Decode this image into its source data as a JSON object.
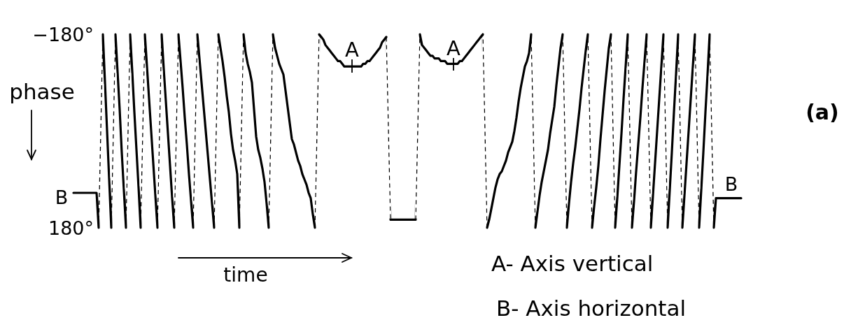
{
  "chart_data": {
    "type": "line",
    "categories": [
      null,
      null,
      null,
      null,
      null,
      null,
      null,
      null,
      null,
      null,
      null,
      null,
      null,
      null,
      null,
      null,
      null,
      null,
      null,
      null,
      null,
      null,
      null,
      null,
      null,
      null,
      null,
      null,
      null,
      null,
      null,
      null,
      null,
      null,
      null,
      null,
      null,
      null,
      null,
      null,
      null,
      null,
      null,
      null,
      null,
      null,
      null,
      null,
      null,
      null,
      null,
      null,
      null,
      null,
      null,
      null,
      null,
      null,
      null,
      null,
      null,
      null,
      null,
      null,
      null,
      null,
      null,
      null,
      null,
      null,
      null,
      null,
      null,
      null,
      null,
      null,
      null,
      null,
      null,
      null,
      null,
      null,
      null,
      null,
      null,
      null,
      null,
      null,
      null,
      null,
      null,
      null,
      null,
      null,
      null,
      null,
      null,
      null,
      null,
      null,
      null,
      null,
      null,
      null,
      null,
      null,
      null,
      null,
      null,
      null,
      null,
      null,
      null,
      null,
      null,
      null,
      null,
      null,
      null,
      null,
      null,
      null,
      null,
      null,
      null,
      null,
      null,
      null,
      null,
      null,
      null,
      null,
      null,
      null,
      null,
      null,
      null,
      null,
      null,
      null,
      null,
      null,
      null,
      null,
      null,
      null,
      null,
      null,
      null,
      null,
      null,
      null,
      null,
      null,
      null,
      null,
      null,
      null,
      null,
      null,
      null,
      null,
      null,
      null,
      null,
      null,
      null,
      null,
      null,
      null,
      null,
      null,
      null,
      null,
      null,
      null,
      null,
      null,
      null,
      null,
      null,
      null,
      null,
      null,
      null,
      null,
      null,
      null,
      null,
      null,
      null,
      null,
      null,
      null,
      null,
      null,
      null,
      null,
      null,
      null,
      null,
      null,
      null,
      null,
      null,
      null,
      null,
      null,
      null,
      null,
      null,
      null,
      null,
      null,
      null,
      null,
      null,
      null,
      null,
      null,
      null,
      null,
      null,
      null,
      null,
      null,
      null,
      null,
      null,
      null,
      null,
      null,
      null,
      null,
      null,
      null,
      null,
      null,
      null,
      null,
      null,
      null,
      null,
      null,
      null,
      null,
      null,
      null,
      null,
      null,
      null,
      null,
      null,
      null,
      null,
      null,
      null,
      null,
      null,
      null,
      null,
      null,
      null,
      null,
      null,
      null,
      null,
      null,
      null,
      null,
      null,
      null,
      null,
      null,
      null,
      null,
      null,
      null,
      null,
      null,
      null,
      null,
      null,
      null,
      null,
      null,
      null,
      null,
      null,
      null,
      null,
      null,
      null,
      null,
      null,
      null,
      null,
      null,
      null,
      null,
      null,
      null,
      null,
      null,
      null,
      null,
      null,
      null,
      null,
      null,
      null,
      null,
      null,
      null,
      null,
      null,
      null,
      null,
      null
    ],
    "series": [
      {
        "color": "#000000",
        "line_style": "solid",
        "values": [
          115,
          115,
          115,
          115,
          115,
          115,
          115,
          115,
          115,
          115,
          115,
          115,
          180,
          null,
          -180,
          -90,
          0,
          90,
          180,
          null,
          -180,
          -110,
          -40,
          40,
          110,
          180,
          null,
          -180,
          -110,
          -35,
          35,
          105,
          180,
          null,
          -180,
          -120,
          -60,
          0,
          60,
          120,
          180,
          null,
          -180,
          -115,
          -55,
          5,
          65,
          125,
          180,
          null,
          -180,
          -130,
          -80,
          -25,
          25,
          80,
          130,
          180,
          null,
          -180,
          -135,
          -90,
          -45,
          0,
          45,
          90,
          135,
          180,
          null,
          -180,
          -155,
          -130,
          -100,
          -65,
          -35,
          5,
          35,
          55,
          80,
          180,
          null,
          -180,
          -145,
          -125,
          -110,
          -90,
          -40,
          10,
          35,
          50,
          70,
          95,
          135,
          180,
          null,
          -180,
          -155,
          -140,
          -125,
          -115,
          -105,
          -75,
          -45,
          -15,
          15,
          25,
          40,
          55,
          65,
          80,
          90,
          100,
          115,
          125,
          155,
          180,
          null,
          -180,
          -175,
          -170,
          -160,
          -155,
          -150,
          -145,
          -140,
          -135,
          -130,
          -130,
          -125,
          -120,
          -120,
          -120,
          -120,
          -120,
          -120,
          -120,
          -120,
          -120,
          -125,
          -125,
          -130,
          -130,
          -135,
          -140,
          -145,
          -150,
          -155,
          -165,
          -170,
          -175,
          null,
          165,
          165,
          165,
          165,
          165,
          165,
          165,
          165,
          165,
          165,
          165,
          165,
          165,
          null,
          -180,
          -160,
          -155,
          -150,
          -145,
          -140,
          -140,
          -135,
          -135,
          -135,
          -130,
          -130,
          -130,
          -125,
          -125,
          -125,
          -125,
          -125,
          -125,
          -130,
          -130,
          -135,
          -140,
          -145,
          -150,
          -155,
          -160,
          -165,
          -170,
          -175,
          -180,
          null,
          180,
          165,
          145,
          125,
          105,
          90,
          80,
          75,
          65,
          55,
          40,
          30,
          20,
          0,
          -25,
          -55,
          -80,
          -100,
          -120,
          -130,
          -145,
          -180,
          null,
          180,
          150,
          120,
          95,
          75,
          55,
          35,
          5,
          -20,
          -45,
          -85,
          -120,
          -155,
          -180,
          null,
          180,
          135,
          95,
          60,
          30,
          -5,
          -40,
          -80,
          -115,
          -150,
          -180,
          null,
          180,
          140,
          105,
          65,
          15,
          -30,
          -75,
          -115,
          -155,
          -180,
          null,
          180,
          125,
          65,
          5,
          -60,
          -120,
          -180,
          null,
          180,
          130,
          75,
          25,
          -25,
          -80,
          -130,
          -180,
          null,
          180,
          120,
          60,
          0,
          -60,
          -120,
          -180,
          null,
          180,
          110,
          40,
          -35,
          -105,
          -180,
          null,
          180,
          120,
          60,
          0,
          -60,
          -120,
          -180,
          null,
          180,
          110,
          40,
          -35,
          -105,
          -180,
          null,
          180,
          125,
          125,
          125,
          125,
          125,
          125,
          125,
          125,
          125,
          125,
          125,
          125,
          125
        ]
      },
      {
        "color": "#000000",
        "line_style": "dashed",
        "values": [
          null,
          null,
          null,
          null,
          null,
          null,
          null,
          null,
          null,
          null,
          null,
          null,
          180,
          0,
          -180,
          null,
          null,
          null,
          180,
          0,
          -180,
          null,
          null,
          null,
          null,
          180,
          0,
          -180,
          null,
          null,
          null,
          null,
          180,
          0,
          -180,
          null,
          null,
          null,
          null,
          null,
          180,
          0,
          -180,
          null,
          null,
          null,
          null,
          null,
          180,
          0,
          -180,
          null,
          null,
          null,
          null,
          null,
          null,
          180,
          0,
          -180,
          null,
          null,
          null,
          null,
          null,
          null,
          null,
          180,
          0,
          -180,
          null,
          null,
          null,
          null,
          null,
          null,
          null,
          null,
          null,
          180,
          0,
          -180,
          null,
          null,
          null,
          null,
          null,
          null,
          null,
          null,
          null,
          null,
          null,
          180,
          0,
          -180,
          null,
          null,
          null,
          null,
          null,
          null,
          null,
          null,
          null,
          null,
          null,
          null,
          null,
          null,
          null,
          null,
          null,
          null,
          null,
          180,
          0,
          -180,
          null,
          null,
          null,
          null,
          null,
          null,
          null,
          null,
          null,
          null,
          null,
          null,
          null,
          null,
          null,
          null,
          null,
          null,
          null,
          null,
          null,
          null,
          null,
          null,
          null,
          null,
          null,
          null,
          null,
          null,
          null,
          -175,
          -5,
          165,
          null,
          null,
          null,
          null,
          null,
          null,
          null,
          null,
          null,
          null,
          null,
          165,
          -5,
          -180,
          null,
          null,
          null,
          null,
          null,
          null,
          null,
          null,
          null,
          null,
          null,
          null,
          null,
          null,
          null,
          null,
          null,
          null,
          null,
          null,
          null,
          null,
          null,
          null,
          null,
          null,
          null,
          null,
          null,
          -180,
          0,
          180,
          null,
          null,
          null,
          null,
          null,
          null,
          null,
          null,
          null,
          null,
          null,
          null,
          null,
          null,
          null,
          null,
          null,
          null,
          null,
          null,
          -180,
          0,
          180,
          null,
          null,
          null,
          null,
          null,
          null,
          null,
          null,
          null,
          null,
          null,
          null,
          -180,
          0,
          180,
          null,
          null,
          null,
          null,
          null,
          null,
          null,
          null,
          null,
          -180,
          0,
          180,
          null,
          null,
          null,
          null,
          null,
          null,
          null,
          null,
          -180,
          0,
          180,
          null,
          null,
          null,
          null,
          null,
          -180,
          0,
          180,
          null,
          null,
          null,
          null,
          null,
          null,
          -180,
          0,
          180,
          null,
          null,
          null,
          null,
          null,
          -180,
          0,
          180,
          null,
          null,
          null,
          null,
          -180,
          0,
          180,
          null,
          null,
          null,
          null,
          null,
          -180,
          0,
          180,
          null,
          null,
          null,
          null,
          -180,
          0,
          180,
          null,
          null,
          null,
          null,
          null,
          null,
          null,
          null,
          null,
          null,
          null,
          null,
          null
        ]
      }
    ],
    "ylim": [
      180,
      -180
    ],
    "yticks": [
      {
        "value": -180,
        "label": "−180°"
      },
      {
        "value": 180,
        "label": "180°"
      }
    ],
    "tick_labels": "y",
    "ylabel": "phase",
    "xlabel": "time",
    "annotations": [
      "A",
      "A",
      "B",
      "B",
      "A- Axis vertical",
      "B- Axis horizontal",
      "(a)"
    ]
  }
}
